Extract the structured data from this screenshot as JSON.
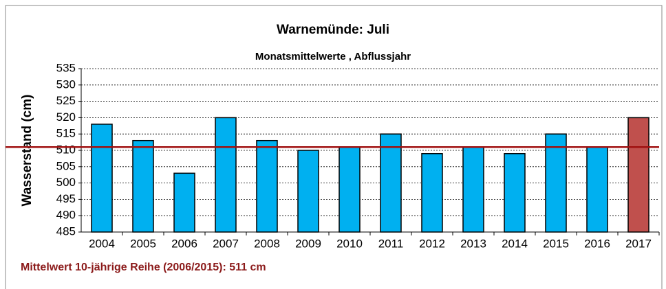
{
  "chart_data": {
    "type": "bar",
    "title": "Warnemünde: Juli",
    "subtitle": "Monatsmittelwerte , Abflussjahr",
    "y_label": "Wasserstand (cm)",
    "annotation": "Mittelwert 10-jährige Reihe (2006/2015): 511 cm",
    "categories": [
      "2004",
      "2005",
      "2006",
      "2007",
      "2008",
      "2009",
      "2010",
      "2011",
      "2012",
      "2013",
      "2014",
      "2015",
      "2016",
      "2017"
    ],
    "values": [
      518,
      513,
      503,
      520,
      513,
      510,
      511,
      515,
      509,
      511,
      509,
      515,
      511,
      520
    ],
    "colors": [
      "#00b0f0",
      "#00b0f0",
      "#00b0f0",
      "#00b0f0",
      "#00b0f0",
      "#00b0f0",
      "#00b0f0",
      "#00b0f0",
      "#00b0f0",
      "#00b0f0",
      "#00b0f0",
      "#00b0f0",
      "#00b0f0",
      "#c0504d"
    ],
    "reference_line": {
      "value": 511,
      "color": "#a01010"
    },
    "ylim": [
      485,
      535
    ],
    "yticks": [
      485,
      490,
      495,
      500,
      505,
      510,
      515,
      520,
      525,
      530,
      535
    ],
    "grid": true
  }
}
